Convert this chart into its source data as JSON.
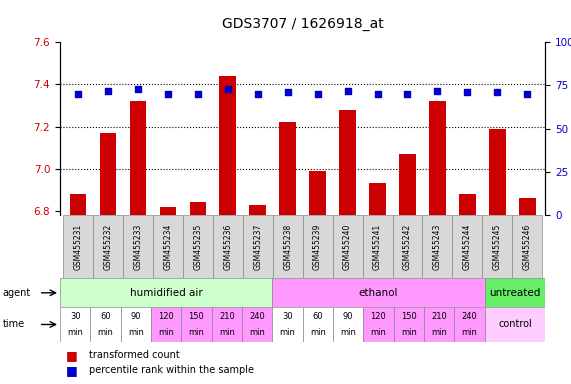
{
  "title": "GDS3707 / 1626918_at",
  "samples": [
    "GSM455231",
    "GSM455232",
    "GSM455233",
    "GSM455234",
    "GSM455235",
    "GSM455236",
    "GSM455237",
    "GSM455238",
    "GSM455239",
    "GSM455240",
    "GSM455241",
    "GSM455242",
    "GSM455243",
    "GSM455244",
    "GSM455245",
    "GSM455246"
  ],
  "red_values": [
    6.88,
    7.17,
    7.32,
    6.82,
    6.84,
    7.44,
    6.83,
    7.22,
    6.99,
    7.28,
    6.93,
    7.07,
    7.32,
    6.88,
    7.19,
    6.86
  ],
  "blue_values": [
    70,
    72,
    73,
    70,
    70,
    73,
    70,
    71,
    70,
    72,
    70,
    70,
    72,
    71,
    71,
    70
  ],
  "ylim_left": [
    6.78,
    7.6
  ],
  "ylim_right": [
    0,
    100
  ],
  "yticks_left": [
    6.8,
    7.0,
    7.2,
    7.4,
    7.6
  ],
  "yticks_right": [
    0,
    25,
    50,
    75,
    100
  ],
  "agent_groups": [
    {
      "label": "humidified air",
      "start": 0,
      "end": 7,
      "color": "#ccffcc"
    },
    {
      "label": "ethanol",
      "start": 7,
      "end": 14,
      "color": "#ff99ff"
    },
    {
      "label": "untreated",
      "start": 14,
      "end": 16,
      "color": "#66ee66"
    }
  ],
  "time_cell_colors": [
    "#ffffff",
    "#ffffff",
    "#ffffff",
    "#ff99ff",
    "#ff99ff",
    "#ff99ff",
    "#ff99ff",
    "#ffffff",
    "#ffffff",
    "#ffffff",
    "#ff99ff",
    "#ff99ff",
    "#ff99ff",
    "#ff99ff",
    "#ffccff",
    "#ffccff"
  ],
  "time_labels_short": [
    "30",
    "60",
    "90",
    "120",
    "150",
    "210",
    "240",
    "30",
    "60",
    "90",
    "120",
    "150",
    "210",
    "240",
    "",
    ""
  ],
  "bar_color": "#cc0000",
  "dot_color": "#0000cc",
  "background_color": "#ffffff",
  "tick_color_left": "#cc0000",
  "tick_color_right": "#0000cc",
  "legend_red": "transformed count",
  "legend_blue": "percentile rank within the sample",
  "label_fontsize": 7,
  "tick_fontsize": 7.5
}
